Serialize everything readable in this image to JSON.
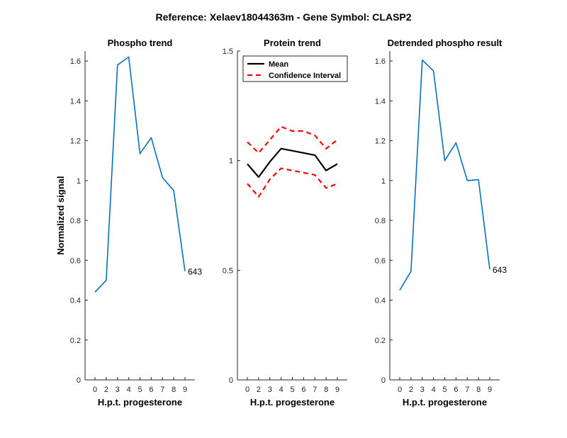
{
  "figure": {
    "title": "Reference:  Xelaev18044363m - Gene Symbol:  CLASP2"
  },
  "chart_data": [
    {
      "type": "line",
      "title": "Phospho trend",
      "xlabel": "H.p.t. progesterone",
      "ylabel": "Normalized signal",
      "categories": [
        "0",
        "2",
        "3",
        "4",
        "5",
        "6",
        "7",
        "8",
        "9"
      ],
      "ylim": [
        0,
        1.65
      ],
      "yticks": [
        "0",
        "0.2",
        "0.4",
        "0.6",
        "0.8",
        "1",
        "1.2",
        "1.4",
        "1.6"
      ],
      "series": [
        {
          "values": [
            0.44,
            0.5,
            1.58,
            1.62,
            1.135,
            1.215,
            1.015,
            0.95,
            0.545
          ],
          "color": "#0072bd"
        }
      ],
      "annotation": "643"
    },
    {
      "type": "line",
      "title": "Protein trend",
      "xlabel": "H.p.t. progesterone",
      "ylabel": "",
      "categories": [
        "0",
        "2",
        "3",
        "4",
        "5",
        "6",
        "7",
        "8",
        "9"
      ],
      "ylim": [
        0,
        1.5
      ],
      "yticks": [
        "0",
        "0.5",
        "1",
        "1.5"
      ],
      "legend": {
        "position": "top-left",
        "entries": [
          "Mean",
          "Confidence Interval"
        ]
      },
      "series": [
        {
          "name": "Mean",
          "values": [
            0.985,
            0.925,
            0.995,
            1.055,
            1.045,
            1.035,
            1.025,
            0.955,
            0.985
          ],
          "color": "#000000",
          "style": "solid"
        },
        {
          "name": "Confidence Interval",
          "values": [
            1.085,
            1.035,
            1.095,
            1.155,
            1.135,
            1.135,
            1.115,
            1.055,
            1.095
          ],
          "color": "#ff0000",
          "style": "dashed"
        },
        {
          "name": "Confidence Interval",
          "values": [
            0.895,
            0.835,
            0.915,
            0.965,
            0.955,
            0.945,
            0.935,
            0.875,
            0.895
          ],
          "color": "#ff0000",
          "style": "dashed"
        }
      ]
    },
    {
      "type": "line",
      "title": "Detrended phospho result",
      "xlabel": "H.p.t. progesterone",
      "ylabel": "",
      "categories": [
        "0",
        "2",
        "3",
        "4",
        "5",
        "6",
        "7",
        "8",
        "9"
      ],
      "ylim": [
        0,
        1.65
      ],
      "yticks": [
        "0",
        "0.2",
        "0.4",
        "0.6",
        "0.8",
        "1",
        "1.2",
        "1.4",
        "1.6"
      ],
      "series": [
        {
          "values": [
            0.45,
            0.545,
            1.605,
            1.55,
            1.1,
            1.19,
            1.0,
            1.005,
            0.555
          ],
          "color": "#0072bd"
        }
      ],
      "annotation": "643"
    }
  ]
}
